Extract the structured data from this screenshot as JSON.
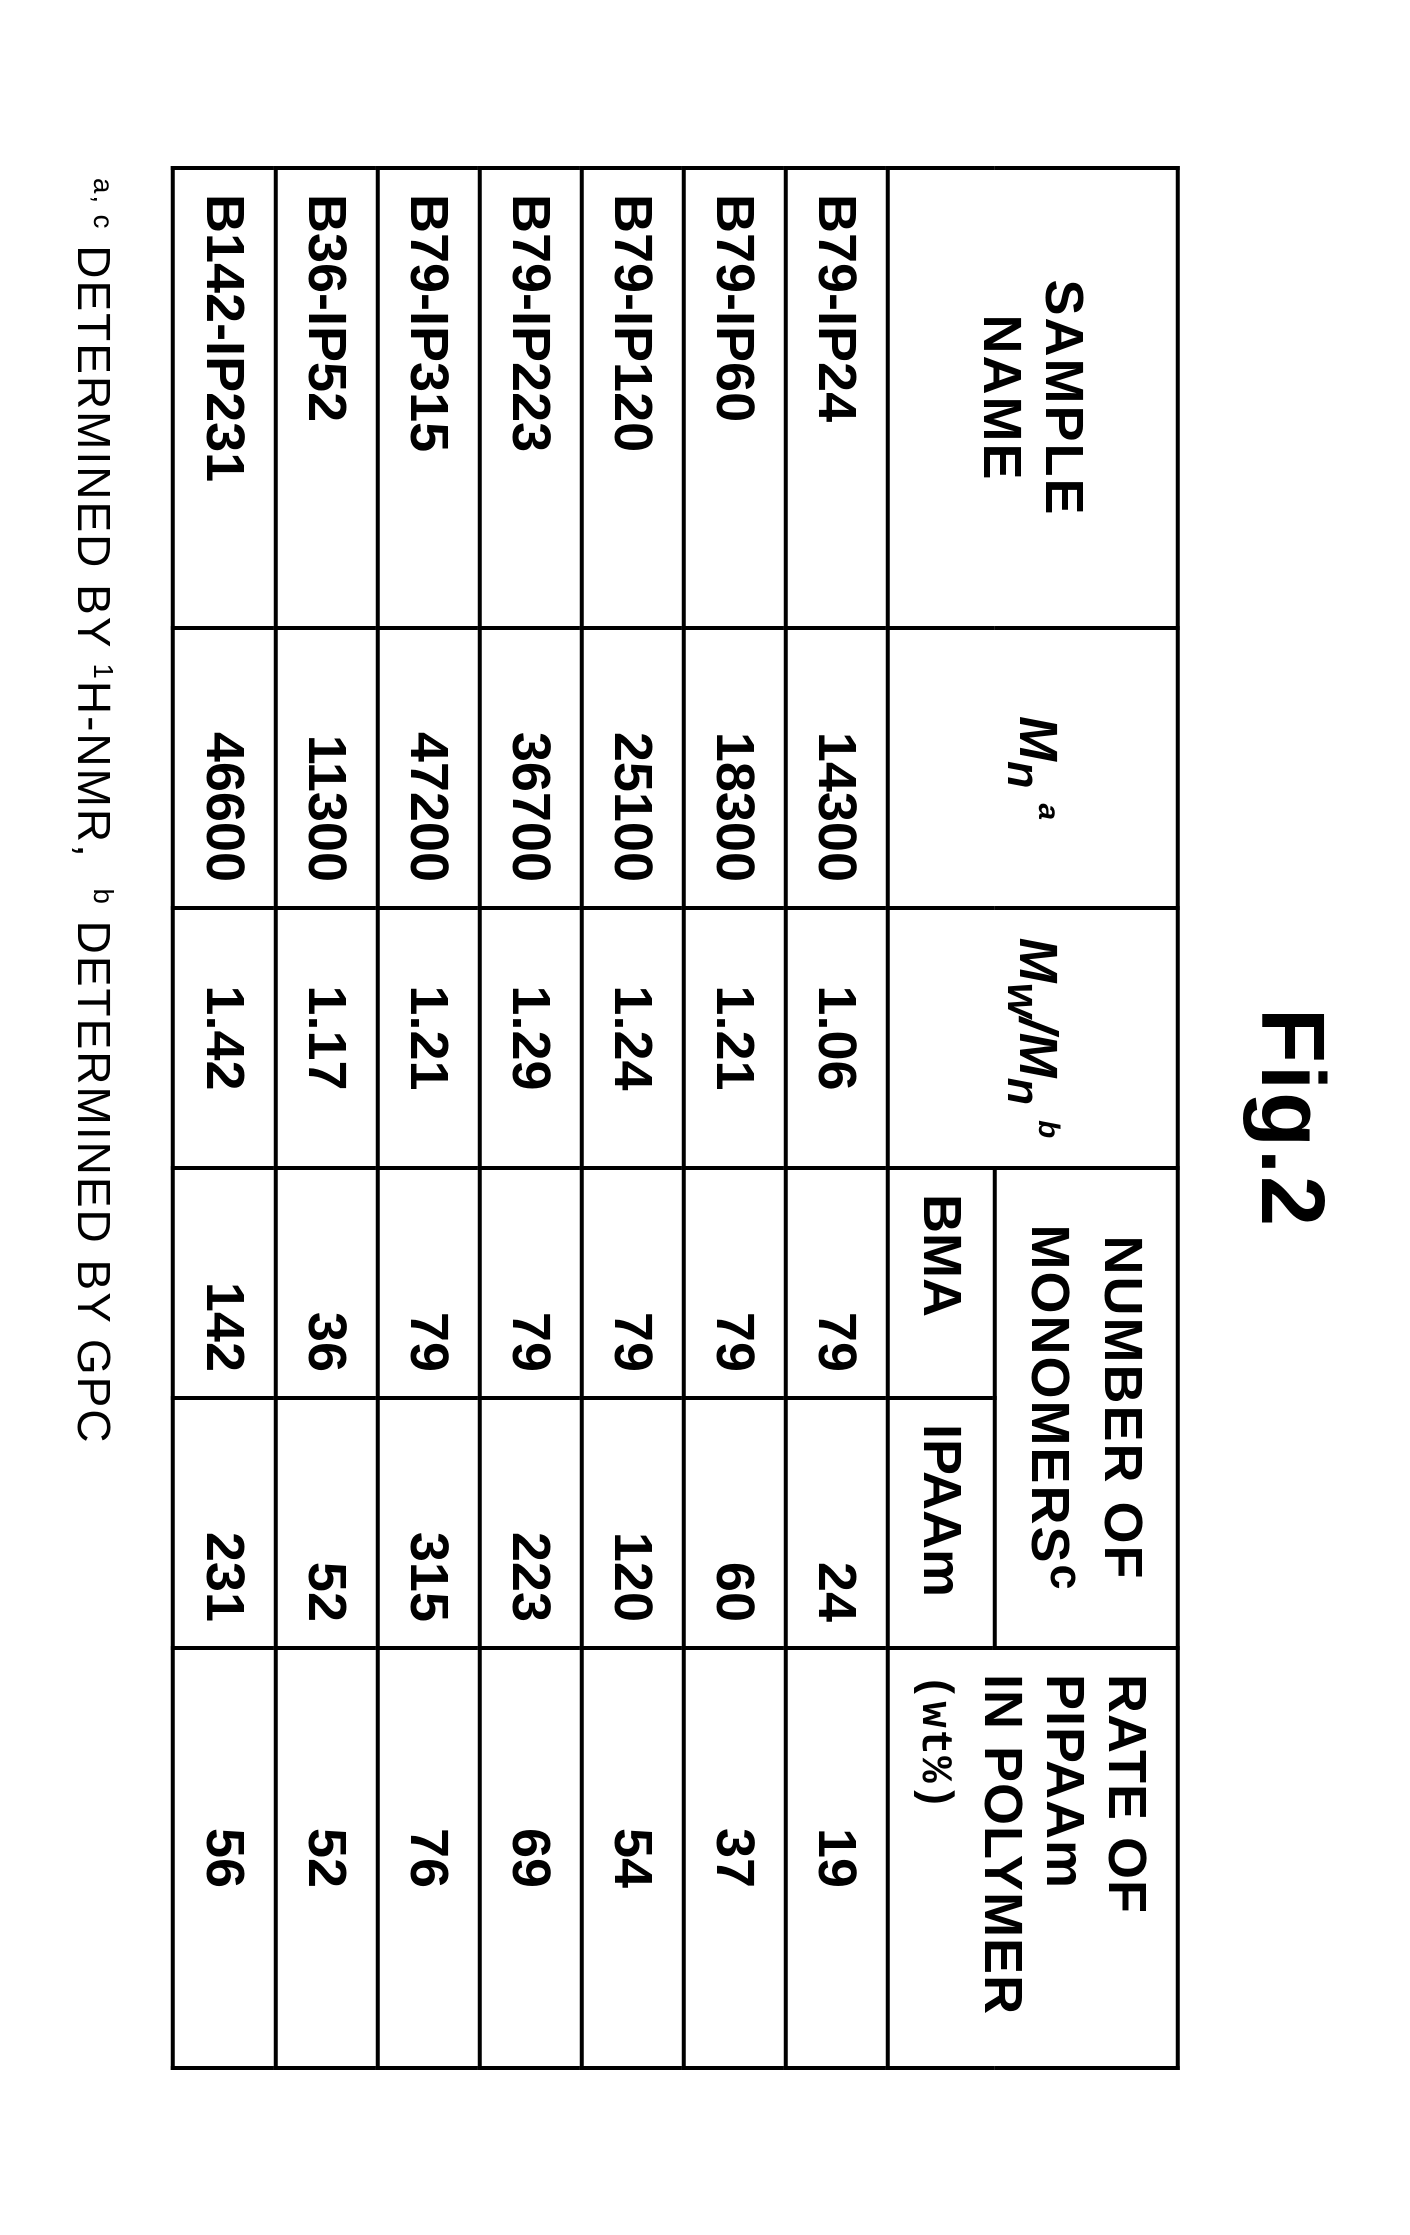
{
  "figure": {
    "title": "Fig.2"
  },
  "table": {
    "headers": {
      "sample": "SAMPLE NAME",
      "mn_html": "<i>M</i><sub>n</sub> <sup>a</sup>",
      "pdi_html": "<i>M</i><sub>w</sub>/<i>M</i><sub>n</sub> <sup>b</sup>",
      "monomers_html": "NUMBER OF MONOMERS<sup>c</sup>",
      "bma": "BMA",
      "ipaam": "IPAAm",
      "rate_html": "RATE OF PIPAAm<br>IN POLYMER<br><span class=\"unit\">(wt%)</span>"
    },
    "rows": [
      {
        "sample": "B79-IP24",
        "mn": "14300",
        "pdi": "1.06",
        "bma": "79",
        "ipaam": "24",
        "rate": "19"
      },
      {
        "sample": "B79-IP60",
        "mn": "18300",
        "pdi": "1.21",
        "bma": "79",
        "ipaam": "60",
        "rate": "37"
      },
      {
        "sample": "B79-IP120",
        "mn": "25100",
        "pdi": "1.24",
        "bma": "79",
        "ipaam": "120",
        "rate": "54"
      },
      {
        "sample": "B79-IP223",
        "mn": "36700",
        "pdi": "1.29",
        "bma": "79",
        "ipaam": "223",
        "rate": "69"
      },
      {
        "sample": "B79-IP315",
        "mn": "47200",
        "pdi": "1.21",
        "bma": "79",
        "ipaam": "315",
        "rate": "76"
      },
      {
        "sample": "B36-IP52",
        "mn": "11300",
        "pdi": "1.17",
        "bma": "36",
        "ipaam": "52",
        "rate": "52"
      },
      {
        "sample": "B142-IP231",
        "mn": "46600",
        "pdi": "1.42",
        "bma": "142",
        "ipaam": "231",
        "rate": "56"
      }
    ]
  },
  "footnote_html": "<sup>a, c</sup> DETERMINED BY <sup>1</sup>H-NMR,&nbsp;&nbsp;<sup>b</sup> DETERMINED BY GPC"
}
